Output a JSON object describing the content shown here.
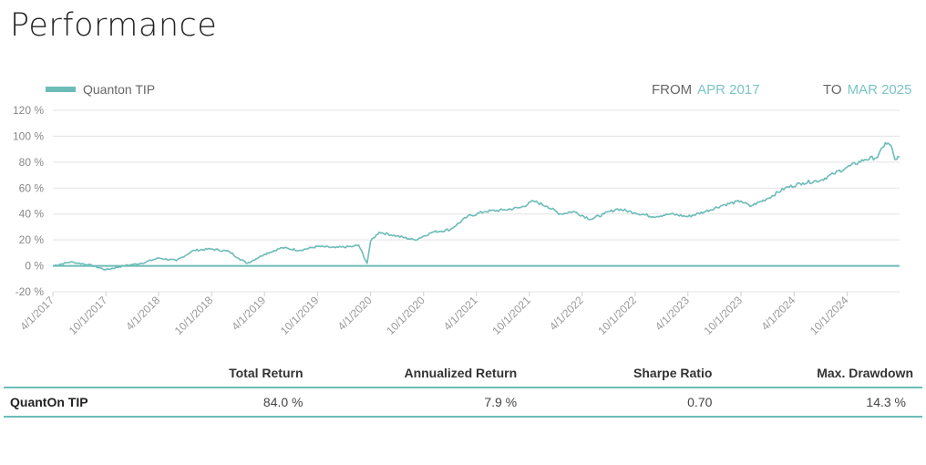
{
  "page": {
    "title": "Performance"
  },
  "legend": {
    "series_name": "Quanton TIP",
    "color": "#6cbcb8"
  },
  "range": {
    "from_label": "FROM",
    "from_value": "APR 2017",
    "to_label": "TO",
    "to_value": "MAR 2025",
    "accent": "#7cc4c4"
  },
  "chart_data": {
    "type": "line",
    "title": "Performance",
    "ylabel": "",
    "xlabel": "",
    "ylim": [
      -20,
      120
    ],
    "y_unit": "%",
    "y_ticks": [
      "120 %",
      "100 %",
      "80 %",
      "60 %",
      "40 %",
      "20 %",
      "0 %",
      "-20 %"
    ],
    "y_tick_values": [
      120,
      100,
      80,
      60,
      40,
      20,
      0,
      -20
    ],
    "x_tick_labels": [
      "4/1/2017",
      "10/1/2017",
      "4/1/2018",
      "10/1/2018",
      "4/1/2019",
      "10/1/2019",
      "4/1/2020",
      "10/1/2020",
      "4/1/2021",
      "10/1/2021",
      "4/1/2022",
      "10/1/2022",
      "4/1/2023",
      "10/1/2023",
      "4/1/2024",
      "10/1/2024"
    ],
    "x_range": [
      "4/1/2017",
      "3/31/2025"
    ],
    "grid": true,
    "legend_position": "top-left",
    "series": [
      {
        "name": "Quanton TIP",
        "color": "#6cbcb8",
        "x": [
          "4/1/2017",
          "6/1/2017",
          "8/1/2017",
          "10/1/2017",
          "12/1/2017",
          "2/1/2018",
          "4/1/2018",
          "6/1/2018",
          "8/1/2018",
          "10/1/2018",
          "12/1/2018",
          "1/1/2019",
          "2/1/2019",
          "4/1/2019",
          "6/1/2019",
          "8/1/2019",
          "10/1/2019",
          "12/1/2019",
          "2/1/2020",
          "2/20/2020",
          "3/20/2020",
          "4/1/2020",
          "5/1/2020",
          "7/1/2020",
          "9/1/2020",
          "11/1/2020",
          "1/1/2021",
          "3/1/2021",
          "5/1/2021",
          "7/1/2021",
          "9/1/2021",
          "10/15/2021",
          "12/1/2021",
          "1/15/2022",
          "3/1/2022",
          "5/1/2022",
          "6/15/2022",
          "8/1/2022",
          "10/1/2022",
          "12/1/2022",
          "2/1/2023",
          "4/1/2023",
          "6/1/2023",
          "8/1/2023",
          "10/1/2023",
          "11/1/2023",
          "1/1/2024",
          "3/1/2024",
          "5/1/2024",
          "7/1/2024",
          "8/15/2024",
          "10/1/2024",
          "12/1/2024",
          "1/15/2025",
          "2/10/2025",
          "3/1/2025",
          "3/15/2025",
          "3/31/2025"
        ],
        "values": [
          0,
          3,
          1,
          -3,
          0,
          2,
          6,
          4,
          12,
          13,
          11,
          6,
          2,
          9,
          14,
          12,
          15,
          14,
          15,
          16,
          2,
          19,
          26,
          23,
          20,
          26,
          28,
          38,
          42,
          43,
          45,
          50,
          46,
          40,
          42,
          36,
          40,
          44,
          41,
          38,
          40,
          38,
          42,
          47,
          50,
          46,
          52,
          60,
          64,
          66,
          71,
          76,
          82,
          84,
          95,
          93,
          82,
          84
        ]
      }
    ]
  },
  "stats_table": {
    "headers": [
      "",
      "Total Return",
      "Annualized Return",
      "Sharpe Ratio",
      "Max. Drawdown"
    ],
    "rows": [
      {
        "name": "QuantOn TIP",
        "total_return": "84.0 %",
        "annualized_return": "7.9 %",
        "sharpe_ratio": "0.70",
        "max_drawdown": "14.3 %"
      }
    ]
  }
}
